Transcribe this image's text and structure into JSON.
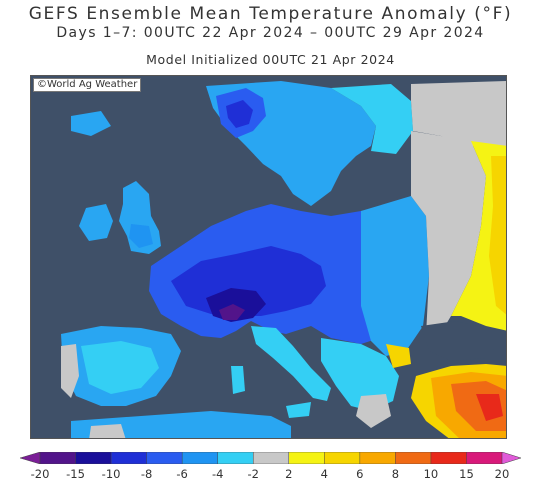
{
  "header": {
    "title": "GEFS Ensemble Mean Temperature Anomaly (°F)",
    "subtitle": "Days 1–7: 00UTC 22 Apr 2024 – 00UTC 29 Apr 2024",
    "model_init": "Model Initialized 00UTC 21 Apr 2024"
  },
  "map": {
    "credit": "©World Ag Weather",
    "region": "Europe",
    "ocean_color": "#3f5068"
  },
  "legend": {
    "units": "°F",
    "ticks": [
      "-20",
      "-15",
      "-10",
      "-8",
      "-6",
      "-4",
      "-2",
      "2",
      "4",
      "6",
      "8",
      "10",
      "15",
      "20"
    ],
    "bins": [
      {
        "range": "<-20",
        "color": "#7a1e96"
      },
      {
        "range": "-20 to -15",
        "color": "#52148a"
      },
      {
        "range": "-15 to -10",
        "color": "#1a0f9a"
      },
      {
        "range": "-10 to -8",
        "color": "#1f2fd6"
      },
      {
        "range": "-8 to -6",
        "color": "#2a5cf0"
      },
      {
        "range": "-6 to -4",
        "color": "#1f94f2"
      },
      {
        "range": "-4 to -2",
        "color": "#34cff4"
      },
      {
        "range": "-2 to 2",
        "color": "#c8c8c8"
      },
      {
        "range": "2 to 4",
        "color": "#f5f314"
      },
      {
        "range": "4 to 6",
        "color": "#f6d500"
      },
      {
        "range": "6 to 8",
        "color": "#f8a800"
      },
      {
        "range": "8 to 10",
        "color": "#f06a14"
      },
      {
        "range": "10 to 15",
        "color": "#e8291a"
      },
      {
        "range": "15 to 20",
        "color": "#d8197a"
      },
      {
        "range": ">20",
        "color": "#e05ad8"
      }
    ]
  }
}
